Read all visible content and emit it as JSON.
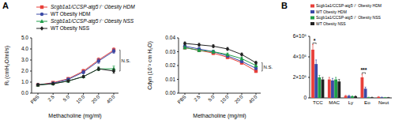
{
  "chart_data": [
    {
      "type": "line",
      "panel": "A",
      "y_label": "Rₗ (cmH₂O/ml/s)",
      "x_label": "Methacholine (mg/ml)",
      "categories": [
        "PBS",
        "2.5",
        "5.0",
        "10.0",
        "20.0",
        "40.0"
      ],
      "ylim": [
        0,
        5
      ],
      "yticks": [
        {
          "value": 0,
          "label": "0.0"
        },
        {
          "value": 1,
          "label": "1.0"
        },
        {
          "value": 2,
          "label": "2.0"
        },
        {
          "value": 3,
          "label": "3.0"
        },
        {
          "value": 4,
          "label": "4.0"
        },
        {
          "value": 5,
          "label": "5.0"
        }
      ],
      "legend": "top",
      "series": [
        {
          "name": "Scgb1a1/CCSP-atg5⁻/⁻ Obesity HDM",
          "color": "#e8403a",
          "marker": "square",
          "values": [
            0.75,
            0.95,
            1.3,
            2.0,
            3.0,
            3.9
          ],
          "errors": [
            0.05,
            0.08,
            0.1,
            0.15,
            0.2,
            0.2
          ]
        },
        {
          "name": "WT Obesity HDM",
          "color": "#3b4aa6",
          "marker": "circle",
          "values": [
            0.75,
            0.9,
            1.25,
            1.9,
            2.9,
            3.8
          ],
          "errors": [
            0.05,
            0.08,
            0.1,
            0.15,
            0.2,
            0.2
          ]
        },
        {
          "name": "Scgb1a1/CCSP-atg5⁻/⁻ Obesity NSS",
          "color": "#1f9e48",
          "marker": "triangle",
          "values": [
            0.75,
            0.85,
            1.1,
            1.5,
            2.2,
            2.2
          ],
          "errors": [
            0.05,
            0.06,
            0.08,
            0.1,
            0.15,
            0.25
          ]
        },
        {
          "name": "WT Obesity NSS",
          "color": "#222222",
          "marker": "diamond",
          "values": [
            0.75,
            0.85,
            1.1,
            1.5,
            2.2,
            2.0
          ],
          "errors": [
            0.05,
            0.06,
            0.08,
            0.1,
            0.15,
            0.2
          ]
        }
      ],
      "annotations": [
        {
          "text": "N.S."
        }
      ]
    },
    {
      "type": "line",
      "y_label": "Cdyn (10⁻² cm H₂O)",
      "x_label": "Methacholine (mg/ml)",
      "categories": [
        "PBS",
        "2.5",
        "5.0",
        "10.0",
        "20.0",
        "40.0"
      ],
      "ylim": [
        0,
        0.04
      ],
      "yticks": [
        {
          "value": 0,
          "label": "0.00"
        },
        0.01,
        0.02,
        0.03,
        0.04
      ],
      "series": [
        {
          "color": "#e8403a",
          "marker": "square",
          "values": [
            0.033,
            0.031,
            0.029,
            0.026,
            0.022,
            0.016
          ],
          "errors": [
            0.001,
            0.001,
            0.001,
            0.001,
            0.001,
            0.001
          ]
        },
        {
          "color": "#3b4aa6",
          "marker": "circle",
          "values": [
            0.034,
            0.032,
            0.03,
            0.027,
            0.023,
            0.018
          ],
          "errors": [
            0.001,
            0.001,
            0.001,
            0.001,
            0.001,
            0.001
          ]
        },
        {
          "color": "#1f9e48",
          "marker": "triangle",
          "values": [
            0.033,
            0.031,
            0.03,
            0.028,
            0.025,
            0.02
          ],
          "errors": [
            0.001,
            0.001,
            0.001,
            0.001,
            0.001,
            0.001
          ]
        },
        {
          "color": "#222222",
          "marker": "diamond",
          "values": [
            0.036,
            0.035,
            0.034,
            0.032,
            0.028,
            0.022
          ],
          "errors": [
            0.001,
            0.001,
            0.001,
            0.001,
            0.001,
            0.001
          ]
        }
      ],
      "annotations": [
        {
          "text": "N.S."
        }
      ]
    },
    {
      "type": "bar",
      "panel": "B",
      "categories": [
        "TCC",
        "MAC",
        "Ly",
        "Eo",
        "Neut"
      ],
      "ylim": [
        0,
        600000
      ],
      "yticks": [
        0,
        {
          "value": 200000,
          "label": "2×10⁵"
        },
        {
          "value": 400000,
          "label": "4×10⁵"
        },
        {
          "value": 600000,
          "label": "6×10⁵"
        }
      ],
      "legend": "top",
      "series": [
        {
          "name": "Scgb1a1/CCSP-atg5⁻/⁻ Obesity HDM",
          "color": "#e8403a",
          "values": [
            470000,
            180000,
            20000,
            200000,
            10000
          ],
          "errors": [
            50000,
            20000,
            5000,
            30000,
            3000
          ]
        },
        {
          "name": "WT Obesity HDM",
          "color": "#3b4aa6",
          "values": [
            330000,
            170000,
            20000,
            90000,
            6000
          ],
          "errors": [
            40000,
            20000,
            5000,
            15000,
            2000
          ]
        },
        {
          "name": "Scgb1a1/CCSP-atg5⁻/⁻ Obesity NSS",
          "color": "#1f9e48",
          "values": [
            200000,
            180000,
            15000,
            5000,
            4000
          ],
          "errors": [
            20000,
            20000,
            4000,
            2000,
            1000
          ]
        },
        {
          "name": "WT Obesity NSS",
          "color": "#222222",
          "values": [
            180000,
            160000,
            15000,
            5000,
            4000
          ],
          "errors": [
            20000,
            20000,
            4000,
            2000,
            1000
          ]
        }
      ],
      "annotations": [
        {
          "text": "*",
          "category": "TCC"
        },
        {
          "text": "***",
          "category": "Eo"
        }
      ]
    }
  ]
}
